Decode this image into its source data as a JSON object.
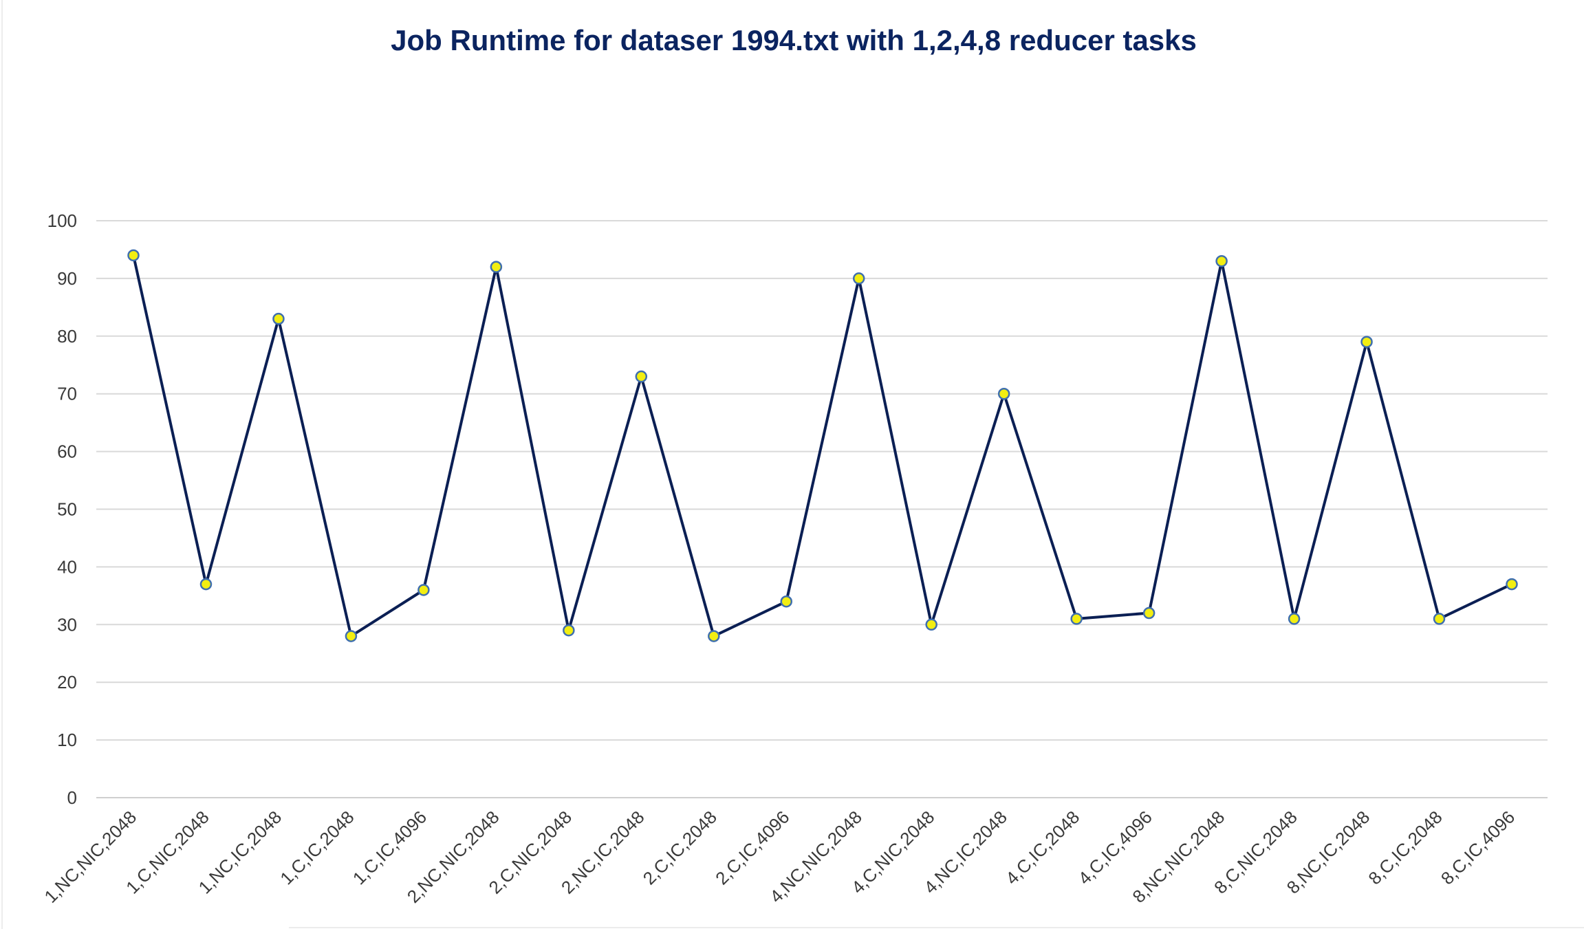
{
  "chart_data": {
    "type": "line",
    "title": "Job Runtime for dataser 1994.txt with 1,2,4,8 reducer tasks",
    "xlabel": "",
    "ylabel": "",
    "ylim": [
      0,
      100
    ],
    "yticks": [
      0,
      10,
      20,
      30,
      40,
      50,
      60,
      70,
      80,
      90,
      100
    ],
    "grid": true,
    "legend": "none",
    "colors": {
      "line": "#0b1f54",
      "marker_fill": "#f2ee12",
      "marker_edge": "#3f6faf",
      "title": "#0b2460"
    },
    "categories": [
      "1,NC,NIC,2048",
      "1,C,NIC,2048",
      "1,NC,IC,2048",
      "1,C,IC,2048",
      "1,C,IC,4096",
      "2,NC,NIC,2048",
      "2,C,NIC,2048",
      "2,NC,IC,2048",
      "2,C,IC,2048",
      "2,C,IC,4096",
      "4,NC,NIC,2048",
      "4,C,NIC,2048",
      "4,NC,IC,2048",
      "4,C,IC,2048",
      "4,C,IC,4096",
      "8,NC,NIC,2048",
      "8,C,NIC,2048",
      "8,NC,IC,2048",
      "8,C,IC,2048",
      "8,C,IC,4096"
    ],
    "series": [
      {
        "values": [
          94,
          37,
          83,
          28,
          36,
          92,
          29,
          73,
          28,
          34,
          90,
          30,
          70,
          31,
          32,
          93,
          31,
          79,
          31,
          37
        ]
      }
    ]
  }
}
